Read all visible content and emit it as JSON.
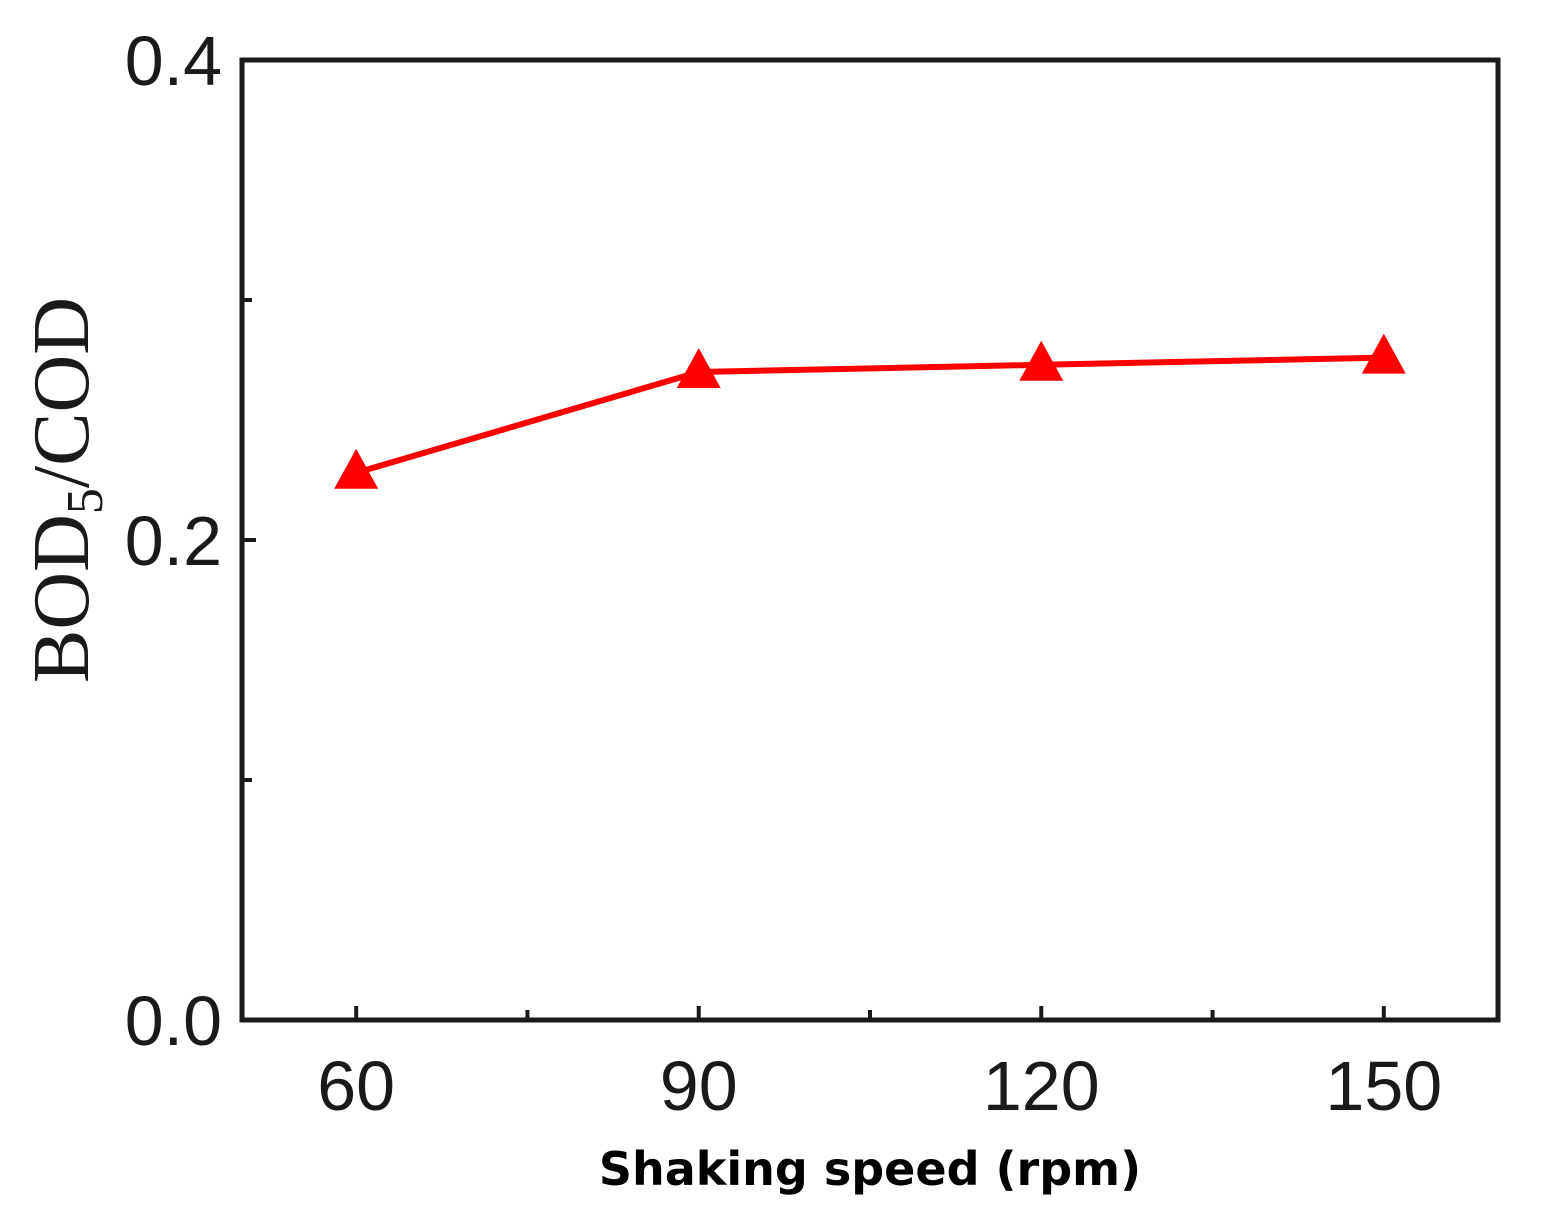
{
  "chart_data": {
    "type": "line",
    "title": "",
    "xlabel": "Shaking speed (rpm)",
    "ylabel": {
      "prefix": "BOD",
      "subscript": "5",
      "suffix": "/COD"
    },
    "x": [
      60,
      90,
      120,
      150
    ],
    "xticks": [
      "60",
      "90",
      "120",
      "150"
    ],
    "yticks": [
      "0.0",
      "0.2",
      "0.4"
    ],
    "xlim": [
      50,
      160
    ],
    "ylim": [
      0.0,
      0.4
    ],
    "grid": false,
    "legend": "none",
    "series": [
      {
        "name": "BOD5/COD",
        "color": "#ff0000",
        "marker": "triangle",
        "values": [
          0.228,
          0.27,
          0.273,
          0.276
        ]
      }
    ]
  }
}
